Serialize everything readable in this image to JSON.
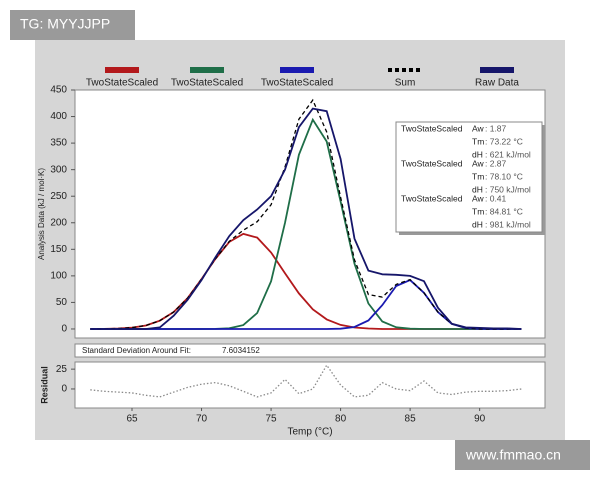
{
  "header_tag": "TG: MYYJJPP",
  "footer_tag": "www.fmmao.cn",
  "chart_data": [
    {
      "type": "line",
      "ylabel": "Analysis Data (kJ / mol·K)",
      "x": [
        62,
        63,
        64,
        65,
        66,
        67,
        68,
        69,
        70,
        71,
        72,
        73,
        74,
        75,
        76,
        77,
        78,
        79,
        80,
        81,
        82,
        83,
        84,
        85,
        86,
        87,
        88,
        89,
        90,
        91,
        92,
        93
      ],
      "xlim": [
        60.9,
        94.7
      ],
      "ylim": [
        -17,
        450
      ],
      "yticks": [
        0,
        50,
        100,
        150,
        200,
        250,
        300,
        350,
        400,
        450
      ],
      "series": [
        {
          "name": "TwoStateScaled",
          "color": "#b3191c",
          "values": [
            0,
            0.2,
            0.8,
            2.5,
            6.6,
            15.5,
            32,
            58,
            94,
            132,
            164,
            179,
            172,
            144,
            105,
            67,
            37,
            18,
            7.6,
            2.8,
            0.9,
            0,
            0,
            0,
            0,
            0,
            0,
            0,
            0,
            0,
            0,
            0
          ]
        },
        {
          "name": "TwoStateScaled",
          "color": "#1f6e48",
          "values": [
            0,
            0,
            0,
            0,
            0,
            0,
            0,
            0,
            0,
            0.2,
            1.3,
            7.2,
            30,
            90,
            200,
            328,
            394,
            353,
            240,
            123,
            48,
            14,
            3.2,
            0.5,
            0,
            0,
            0,
            0,
            0,
            0,
            0,
            0
          ]
        },
        {
          "name": "TwoStateScaled",
          "color": "#1a1ab0",
          "values": [
            0,
            0,
            0,
            0,
            0,
            0,
            0,
            0,
            0,
            0,
            0,
            0,
            0,
            0,
            0,
            0,
            0,
            0,
            0.6,
            3.8,
            16,
            45,
            81,
            92,
            68,
            32,
            9.5,
            1.9,
            0.3,
            0,
            0,
            0
          ]
        },
        {
          "name": "Sum",
          "color": "#000000",
          "style": "dashed",
          "values": [
            0,
            0.2,
            0.8,
            2.5,
            6.6,
            15.5,
            32,
            58,
            94,
            132,
            165,
            186,
            202,
            234,
            305,
            395,
            431,
            371,
            248,
            130,
            65,
            60,
            84,
            93,
            68,
            32,
            9.5,
            1.9,
            0.3,
            0,
            0,
            0
          ]
        },
        {
          "name": "Raw Data",
          "color": "#16166a",
          "values": [
            0,
            0,
            0,
            0,
            0,
            3,
            25,
            55,
            92,
            135,
            175,
            205,
            225,
            250,
            300,
            380,
            415,
            410,
            320,
            170,
            110,
            103,
            102,
            100,
            90,
            40,
            10,
            3,
            2,
            1,
            1,
            0
          ]
        }
      ],
      "info_box": [
        {
          "name": "TwoStateScaled",
          "rows": [
            [
              "Aw",
              ": 1.87"
            ],
            [
              "Tm",
              ": 73.22 °C"
            ],
            [
              "dH",
              ": 621 kJ/mol"
            ]
          ]
        },
        {
          "name": "TwoStateScaled",
          "rows": [
            [
              "Aw",
              ": 2.87"
            ],
            [
              "Tm",
              ": 78.10 °C"
            ],
            [
              "dH",
              ": 750 kJ/mol"
            ]
          ]
        },
        {
          "name": "TwoStateScaled",
          "rows": [
            [
              "Aw",
              ": 0.41"
            ],
            [
              "Tm",
              ": 84.81 °C"
            ],
            [
              "dH",
              ": 981 kJ/mol"
            ]
          ]
        }
      ]
    },
    {
      "type": "line",
      "annotation": {
        "label": "Standard Deviation Around Fit:",
        "value": "7.6034152"
      },
      "xlabel": "Temp (°C)",
      "ylabel": "Residual",
      "x": [
        62,
        63,
        64,
        65,
        66,
        67,
        68,
        69,
        70,
        71,
        72,
        73,
        74,
        75,
        76,
        77,
        78,
        79,
        80,
        81,
        82,
        83,
        84,
        85,
        86,
        87,
        88,
        89,
        90,
        91,
        92,
        93
      ],
      "xlim": [
        60.9,
        94.7
      ],
      "xticks": [
        65,
        70,
        75,
        80,
        85,
        90
      ],
      "ylim": [
        -24,
        34
      ],
      "yticks": [
        0,
        25
      ],
      "series": [
        {
          "color": "#8a8a8a",
          "style": "dotted",
          "values": [
            -1,
            -3,
            -4,
            -5,
            -8,
            -10,
            -4,
            2,
            6,
            8,
            4,
            -3,
            -10,
            -5,
            12,
            -6,
            0,
            30,
            5,
            -10,
            -8,
            8,
            0,
            -2,
            10,
            -5,
            -7,
            -4,
            -3,
            -3,
            -2,
            0
          ]
        }
      ]
    }
  ]
}
